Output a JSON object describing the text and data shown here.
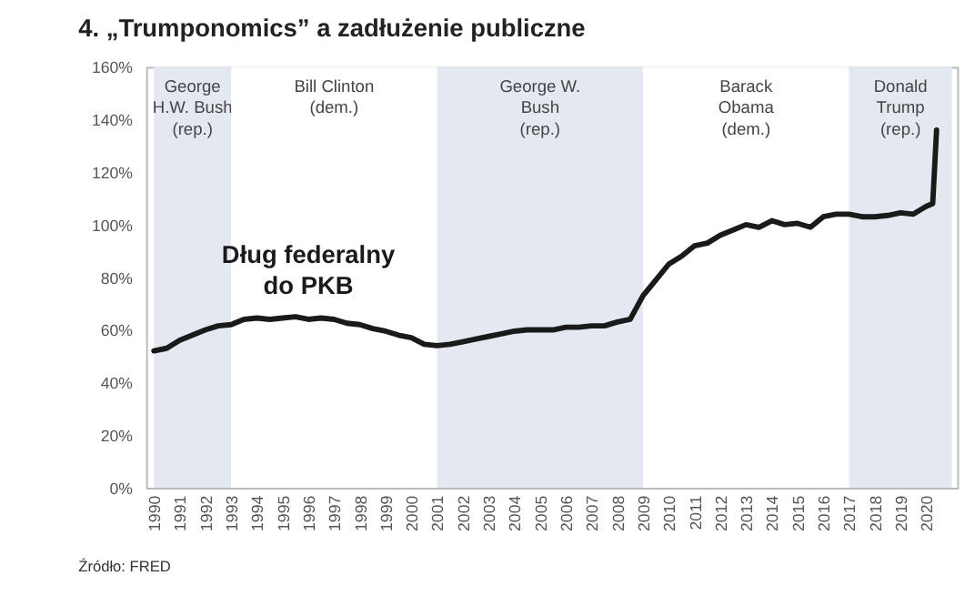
{
  "chart_data": {
    "type": "line",
    "title": "4. „Trumponomics” a zadłużenie publiczne",
    "x": [
      1990,
      1990.5,
      1991,
      1991.5,
      1992,
      1992.5,
      1993,
      1993.5,
      1994,
      1994.5,
      1995,
      1995.5,
      1996,
      1996.5,
      1997,
      1997.5,
      1998,
      1998.5,
      1999,
      1999.5,
      2000,
      2000.5,
      2001,
      2001.5,
      2002,
      2002.5,
      2003,
      2003.5,
      2004,
      2004.5,
      2005,
      2005.5,
      2006,
      2006.5,
      2007,
      2007.5,
      2008,
      2008.5,
      2009,
      2009.5,
      2010,
      2010.5,
      2011,
      2011.5,
      2012,
      2012.5,
      2013,
      2013.5,
      2014,
      2014.5,
      2015,
      2015.5,
      2016,
      2016.5,
      2017,
      2017.5,
      2018,
      2018.5,
      2019,
      2019.5,
      2020,
      2020.25,
      2020.4
    ],
    "series": [
      {
        "color": "#1a1a1a",
        "values": [
          52,
          53,
          56,
          58,
          60,
          61.5,
          62,
          64,
          64.5,
          64,
          64.5,
          65,
          64,
          64.5,
          64,
          62.5,
          62,
          60.5,
          59.5,
          58,
          57,
          54.5,
          54,
          54.5,
          55.5,
          56.5,
          57.5,
          58.5,
          59.5,
          60,
          60,
          60,
          61,
          61,
          61.5,
          61.5,
          63,
          64,
          73,
          79,
          85,
          88,
          92,
          93,
          96,
          98,
          100,
          99,
          101.5,
          100,
          100.5,
          99,
          103,
          104,
          104,
          103,
          103,
          103.5,
          104.5,
          104,
          107,
          108,
          136
        ]
      }
    ],
    "xlim": [
      1989.7,
      2021.2
    ],
    "xticks": [
      1990,
      1991,
      1992,
      1993,
      1994,
      1995,
      1996,
      1997,
      1998,
      1999,
      2000,
      2001,
      2002,
      2003,
      2004,
      2005,
      2006,
      2007,
      2008,
      2009,
      2010,
      2011,
      2012,
      2013,
      2014,
      2015,
      2016,
      2017,
      2018,
      2019,
      2020
    ],
    "ylim": [
      0,
      160
    ],
    "yticks": [
      {
        "value": 0,
        "label": "0%"
      },
      {
        "value": 20,
        "label": "20%"
      },
      {
        "value": 40,
        "label": "40%"
      },
      {
        "value": 60,
        "label": "60%"
      },
      {
        "value": 80,
        "label": "80%"
      },
      {
        "value": 100,
        "label": "100%"
      },
      {
        "value": 120,
        "label": "120%"
      },
      {
        "value": 140,
        "label": "140%"
      },
      {
        "value": 160,
        "label": "160%"
      }
    ],
    "bands": [
      {
        "axis": "x",
        "from": 1990,
        "to": 1993,
        "label": "George\nH.W. Bush\n(rep.)",
        "color": "#e4e8f0"
      },
      {
        "axis": "x",
        "from": 1993,
        "to": 2001,
        "label": "Bill Clinton\n(dem.)",
        "color": "#ffffff"
      },
      {
        "axis": "x",
        "from": 2001,
        "to": 2009,
        "label": "George W.\nBush\n(rep.)",
        "color": "#e4e8f0"
      },
      {
        "axis": "x",
        "from": 2009,
        "to": 2017,
        "label": "Barack\nObama\n(dem.)",
        "color": "#ffffff"
      },
      {
        "axis": "x",
        "from": 2017,
        "to": 2021,
        "label": "Donald\nTrump\n(rep.)",
        "color": "#e4e8f0"
      }
    ],
    "annotations": [
      "Dług federalny\ndo PKB",
      "Źródło: FRED"
    ],
    "grid": false
  }
}
